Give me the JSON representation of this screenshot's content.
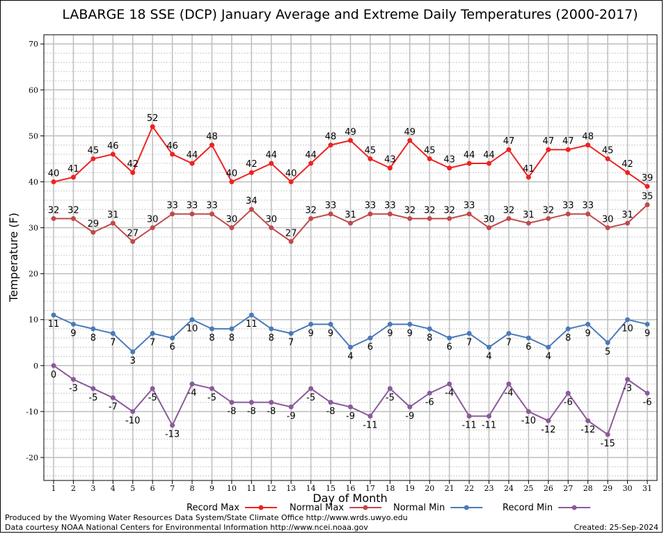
{
  "chart_data": {
    "type": "line",
    "title": "LABARGE 18 SSE (DCP) January Average and Extreme Daily Temperatures (2000-2017)",
    "xlabel": "Day of Month",
    "ylabel": "Temperature (F)",
    "ylim": [
      -25,
      72
    ],
    "yticks": [
      -20,
      -10,
      0,
      10,
      20,
      30,
      40,
      50,
      60,
      70
    ],
    "x": [
      1,
      2,
      3,
      4,
      5,
      6,
      7,
      8,
      9,
      10,
      11,
      12,
      13,
      14,
      15,
      16,
      17,
      18,
      19,
      20,
      21,
      22,
      23,
      24,
      25,
      26,
      27,
      28,
      29,
      30,
      31
    ],
    "grid": true,
    "legend_position": "bottom",
    "series": [
      {
        "name": "Record Max",
        "color": "#ee2222",
        "label_position": "above",
        "values": [
          40,
          41,
          45,
          46,
          42,
          52,
          46,
          44,
          48,
          40,
          42,
          44,
          40,
          44,
          48,
          49,
          45,
          43,
          49,
          45,
          43,
          44,
          44,
          47,
          41,
          47,
          47,
          48,
          45,
          42,
          39
        ]
      },
      {
        "name": "Normal Max",
        "color": "#c04a4a",
        "label_position": "above",
        "values": [
          32,
          32,
          29,
          31,
          27,
          30,
          33,
          33,
          33,
          30,
          34,
          30,
          27,
          32,
          33,
          31,
          33,
          33,
          32,
          32,
          32,
          33,
          30,
          32,
          31,
          32,
          33,
          33,
          30,
          31,
          35
        ]
      },
      {
        "name": "Normal Min",
        "color": "#4a7ab8",
        "label_position": "below",
        "values": [
          11,
          9,
          8,
          7,
          3,
          7,
          6,
          10,
          8,
          8,
          11,
          8,
          7,
          9,
          9,
          4,
          6,
          9,
          9,
          8,
          6,
          7,
          4,
          7,
          6,
          4,
          8,
          9,
          5,
          10,
          9
        ]
      },
      {
        "name": "Record Min",
        "color": "#8a5a9a",
        "label_position": "below",
        "values": [
          0,
          -3,
          -5,
          -7,
          -10,
          -5,
          -13,
          -4,
          -5,
          -8,
          -8,
          -8,
          -9,
          -5,
          -8,
          -9,
          -11,
          -5,
          -9,
          -6,
          -4,
          -11,
          -11,
          -4,
          -10,
          -12,
          -6,
          -12,
          -15,
          -3,
          -6
        ]
      }
    ]
  },
  "footer": {
    "produced_by": "Produced by the Wyoming Water Resources Data System/State Climate Office http://www.wrds.uwyo.edu",
    "courtesy": "Data courtesy NOAA National Centers for Environmental Information http://www.ncei.noaa.gov",
    "created": "Created:  25-Sep-2024"
  }
}
